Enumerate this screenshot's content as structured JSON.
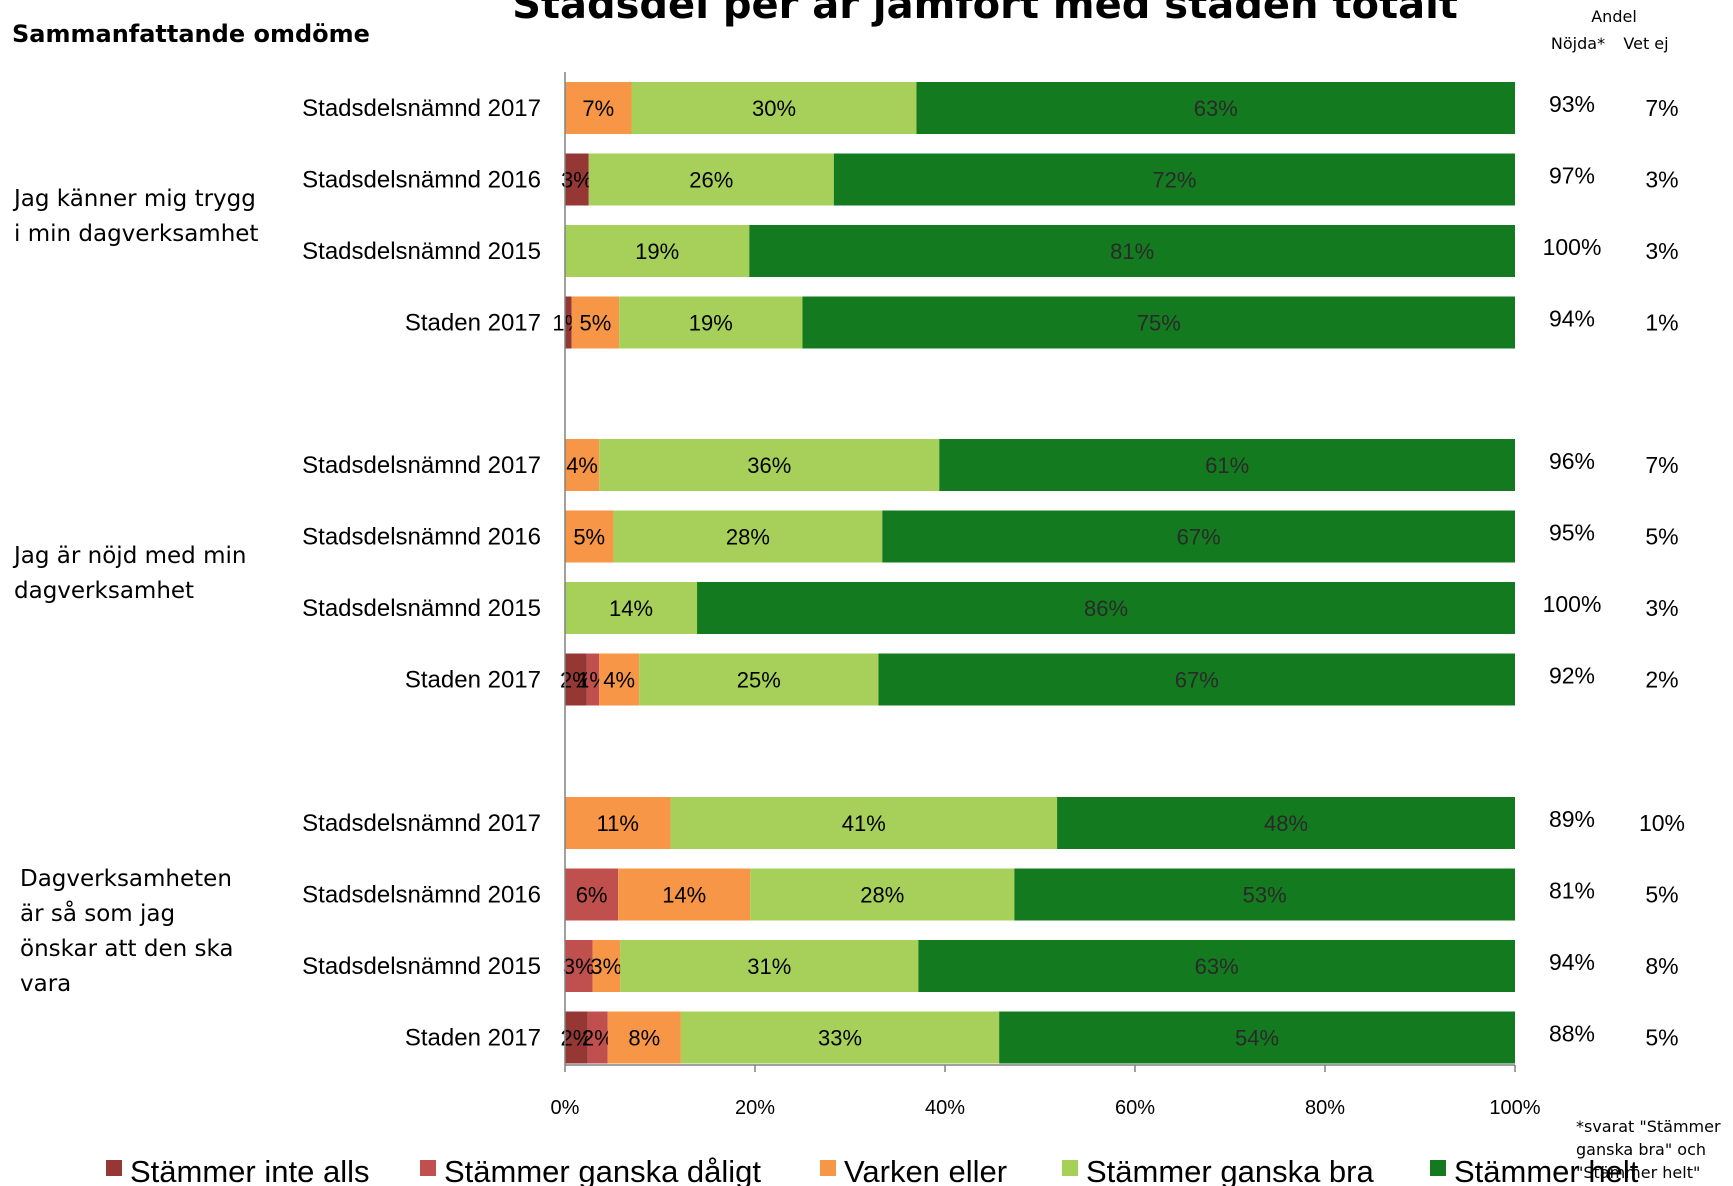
{
  "chart_data": {
    "type": "bar",
    "orientation": "horizontal",
    "stacked": true,
    "title": "Stadsdel per år jämfört med staden totalt",
    "subtitle": "Sammanfattande omdöme",
    "series": [
      {
        "name": "Stämmer inte alls",
        "color": "#953735"
      },
      {
        "name": "Stämmer ganska dåligt",
        "color": "#c0504d"
      },
      {
        "name": "Varken eller",
        "color": "#f79646"
      },
      {
        "name": "Stämmer ganska bra",
        "color": "#a6d05a"
      },
      {
        "name": "Stämmer helt",
        "color": "#137a1f"
      }
    ],
    "groups": [
      {
        "label_lines": [
          "Jag känner mig trygg",
          "i min dagverksamhet"
        ],
        "rows": [
          {
            "label": "Stadsdelsnämnd 2017",
            "values": [
              0,
              0,
              7,
              30,
              63
            ],
            "labels": [
              "",
              "",
              "7%",
              "30%",
              "63%"
            ],
            "nojda": "93%",
            "vetej": "7%"
          },
          {
            "label": "Stadsdelsnämnd 2016",
            "values": [
              2.5,
              0,
              0,
              25.8,
              71.7
            ],
            "labels": [
              "3%",
              "",
              "",
              "26%",
              "72%"
            ],
            "nojda": "97%",
            "vetej": "3%"
          },
          {
            "label": "Stadsdelsnämnd 2015",
            "values": [
              0,
              0,
              0,
              19.4,
              80.6
            ],
            "labels": [
              "",
              "",
              "",
              "19%",
              "81%"
            ],
            "nojda": "100%",
            "vetej": "3%"
          },
          {
            "label": "Staden 2017",
            "values": [
              0.7,
              0,
              5,
              19.3,
              75
            ],
            "labels": [
              "1%",
              "",
              "5%",
              "19%",
              "75%"
            ],
            "nojda": "94%",
            "vetej": "1%"
          }
        ]
      },
      {
        "label_lines": [
          "Jag är nöjd med min",
          "dagverksamhet"
        ],
        "rows": [
          {
            "label": "Stadsdelsnämnd 2017",
            "values": [
              0,
              0,
              3.6,
              35.8,
              60.6
            ],
            "labels": [
              "",
              "",
              "4%",
              "36%",
              "61%"
            ],
            "nojda": "96%",
            "vetej": "7%"
          },
          {
            "label": "Stadsdelsnämnd 2016",
            "values": [
              0,
              0,
              5.1,
              28.3,
              66.6
            ],
            "labels": [
              "",
              "",
              "5%",
              "28%",
              "67%"
            ],
            "nojda": "95%",
            "vetej": "5%"
          },
          {
            "label": "Stadsdelsnämnd 2015",
            "values": [
              0,
              0,
              0,
              13.9,
              86.1
            ],
            "labels": [
              "",
              "",
              "",
              "14%",
              "86%"
            ],
            "nojda": "100%",
            "vetej": "3%"
          },
          {
            "label": "Staden 2017",
            "values": [
              2.3,
              1.3,
              4.2,
              25.2,
              67
            ],
            "labels": [
              "2%",
              "1%",
              "4%",
              "25%",
              "67%"
            ],
            "nojda": "92%",
            "vetej": "2%"
          }
        ]
      },
      {
        "label_lines": [
          "Dagverksamheten",
          "är så som jag",
          "önskar att den ska",
          "vara"
        ],
        "rows": [
          {
            "label": "Stadsdelsnämnd 2017",
            "values": [
              0,
              0,
              11.1,
              40.7,
              48.2
            ],
            "labels": [
              "",
              "",
              "11%",
              "41%",
              "48%"
            ],
            "nojda": "89%",
            "vetej": "10%"
          },
          {
            "label": "Stadsdelsnämnd 2016",
            "values": [
              0,
              5.6,
              13.9,
              27.8,
              52.7
            ],
            "labels": [
              "",
              "6%",
              "14%",
              "28%",
              "53%"
            ],
            "nojda": "81%",
            "vetej": "5%"
          },
          {
            "label": "Stadsdelsnämnd 2015",
            "values": [
              0,
              2.9,
              2.9,
              31.4,
              62.8
            ],
            "labels": [
              "",
              "3%",
              "3%",
              "31%",
              "63%"
            ],
            "nojda": "94%",
            "vetej": "8%"
          },
          {
            "label": "Staden 2017",
            "values": [
              2.4,
              2.1,
              7.7,
              33.5,
              54.3
            ],
            "labels": [
              "2%",
              "2%",
              "8%",
              "33%",
              "54%"
            ],
            "nojda": "88%",
            "vetej": "5%"
          }
        ]
      }
    ],
    "x_ticks": [
      "0%",
      "20%",
      "40%",
      "60%",
      "80%",
      "100%"
    ],
    "xlim": [
      0,
      100
    ],
    "side_header": {
      "top": "Andel",
      "col1": "Nöjda*",
      "col2": "Vet ej"
    },
    "footnote_lines": [
      "*svarat \"Stämmer",
      "ganska bra\" och",
      "\"Stämmer helt\""
    ],
    "legend_position": "bottom"
  }
}
